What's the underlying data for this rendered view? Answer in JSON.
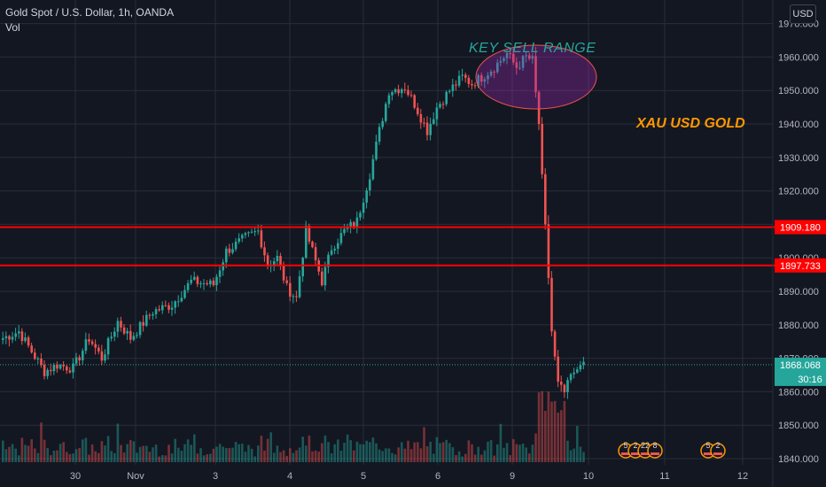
{
  "header": {
    "title": "Gold Spot / U.S. Dollar, 1h, OANDA",
    "vol_label": "Vol",
    "currency": "USD"
  },
  "annotations": {
    "key_sell_range": "KEY SELL RANGE",
    "xau_usd_gold": "XAU USD GOLD"
  },
  "price_axis": {
    "ticks": [
      1840,
      1850,
      1860,
      1870,
      1880,
      1890,
      1900,
      1910,
      1920,
      1930,
      1940,
      1950,
      1960,
      1970
    ],
    "tick_labels": [
      "1840.000",
      "1850.000",
      "1860.000",
      "1870.000",
      "1880.000",
      "1890.000",
      "1900.000",
      "1910.000",
      "1920.000",
      "1930.000",
      "1940.000",
      "1950.000",
      "1960.000",
      "1970.000"
    ]
  },
  "time_axis": {
    "labels": [
      "30",
      "Nov",
      "3",
      "4",
      "5",
      "6",
      "9",
      "10",
      "11",
      "12"
    ]
  },
  "levels": [
    {
      "price": 1909.18,
      "label": "1909.180",
      "color": "#ff0000"
    },
    {
      "price": 1897.733,
      "label": "1897.733",
      "color": "#ff0000"
    }
  ],
  "current_price": {
    "price": 1868.068,
    "label": "1868.068",
    "countdown": "30:16",
    "color": "#26a69a"
  },
  "event_markers": {
    "group1": [
      "5",
      "2",
      "22",
      "8"
    ],
    "group2": [
      "5",
      "2"
    ]
  },
  "colors": {
    "up": "#26a69a",
    "down": "#ef5350",
    "background": "#131722",
    "grid": "#2a2e39"
  },
  "chart_data": {
    "type": "candlestick",
    "ylim": [
      1840,
      1974
    ],
    "waypoints": [
      [
        0,
        1876
      ],
      [
        5,
        1878
      ],
      [
        9,
        1872
      ],
      [
        13,
        1866
      ],
      [
        17,
        1868
      ],
      [
        22,
        1867
      ],
      [
        27,
        1876
      ],
      [
        31,
        1870
      ],
      [
        36,
        1881
      ],
      [
        40,
        1876
      ],
      [
        47,
        1884
      ],
      [
        53,
        1886
      ],
      [
        59,
        1893
      ],
      [
        66,
        1892
      ],
      [
        70,
        1902
      ],
      [
        76,
        1906
      ],
      [
        80,
        1908
      ],
      [
        83,
        1898
      ],
      [
        86,
        1900
      ],
      [
        89,
        1891
      ],
      [
        92,
        1888
      ],
      [
        95,
        1908
      ],
      [
        100,
        1893
      ],
      [
        103,
        1903
      ],
      [
        107,
        1908
      ],
      [
        111,
        1911
      ],
      [
        115,
        1925
      ],
      [
        118,
        1938
      ],
      [
        121,
        1950
      ],
      [
        126,
        1951
      ],
      [
        129,
        1946
      ],
      [
        133,
        1938
      ],
      [
        136,
        1945
      ],
      [
        140,
        1950
      ],
      [
        144,
        1954
      ],
      [
        147,
        1952
      ],
      [
        150,
        1954
      ],
      [
        154,
        1957
      ],
      [
        158,
        1961
      ],
      [
        161,
        1957
      ],
      [
        164,
        1960
      ],
      [
        166,
        1959
      ],
      [
        168,
        1940
      ],
      [
        170,
        1910
      ],
      [
        172,
        1878
      ],
      [
        174,
        1863
      ],
      [
        176,
        1860
      ],
      [
        179,
        1866
      ],
      [
        182,
        1868
      ]
    ]
  }
}
